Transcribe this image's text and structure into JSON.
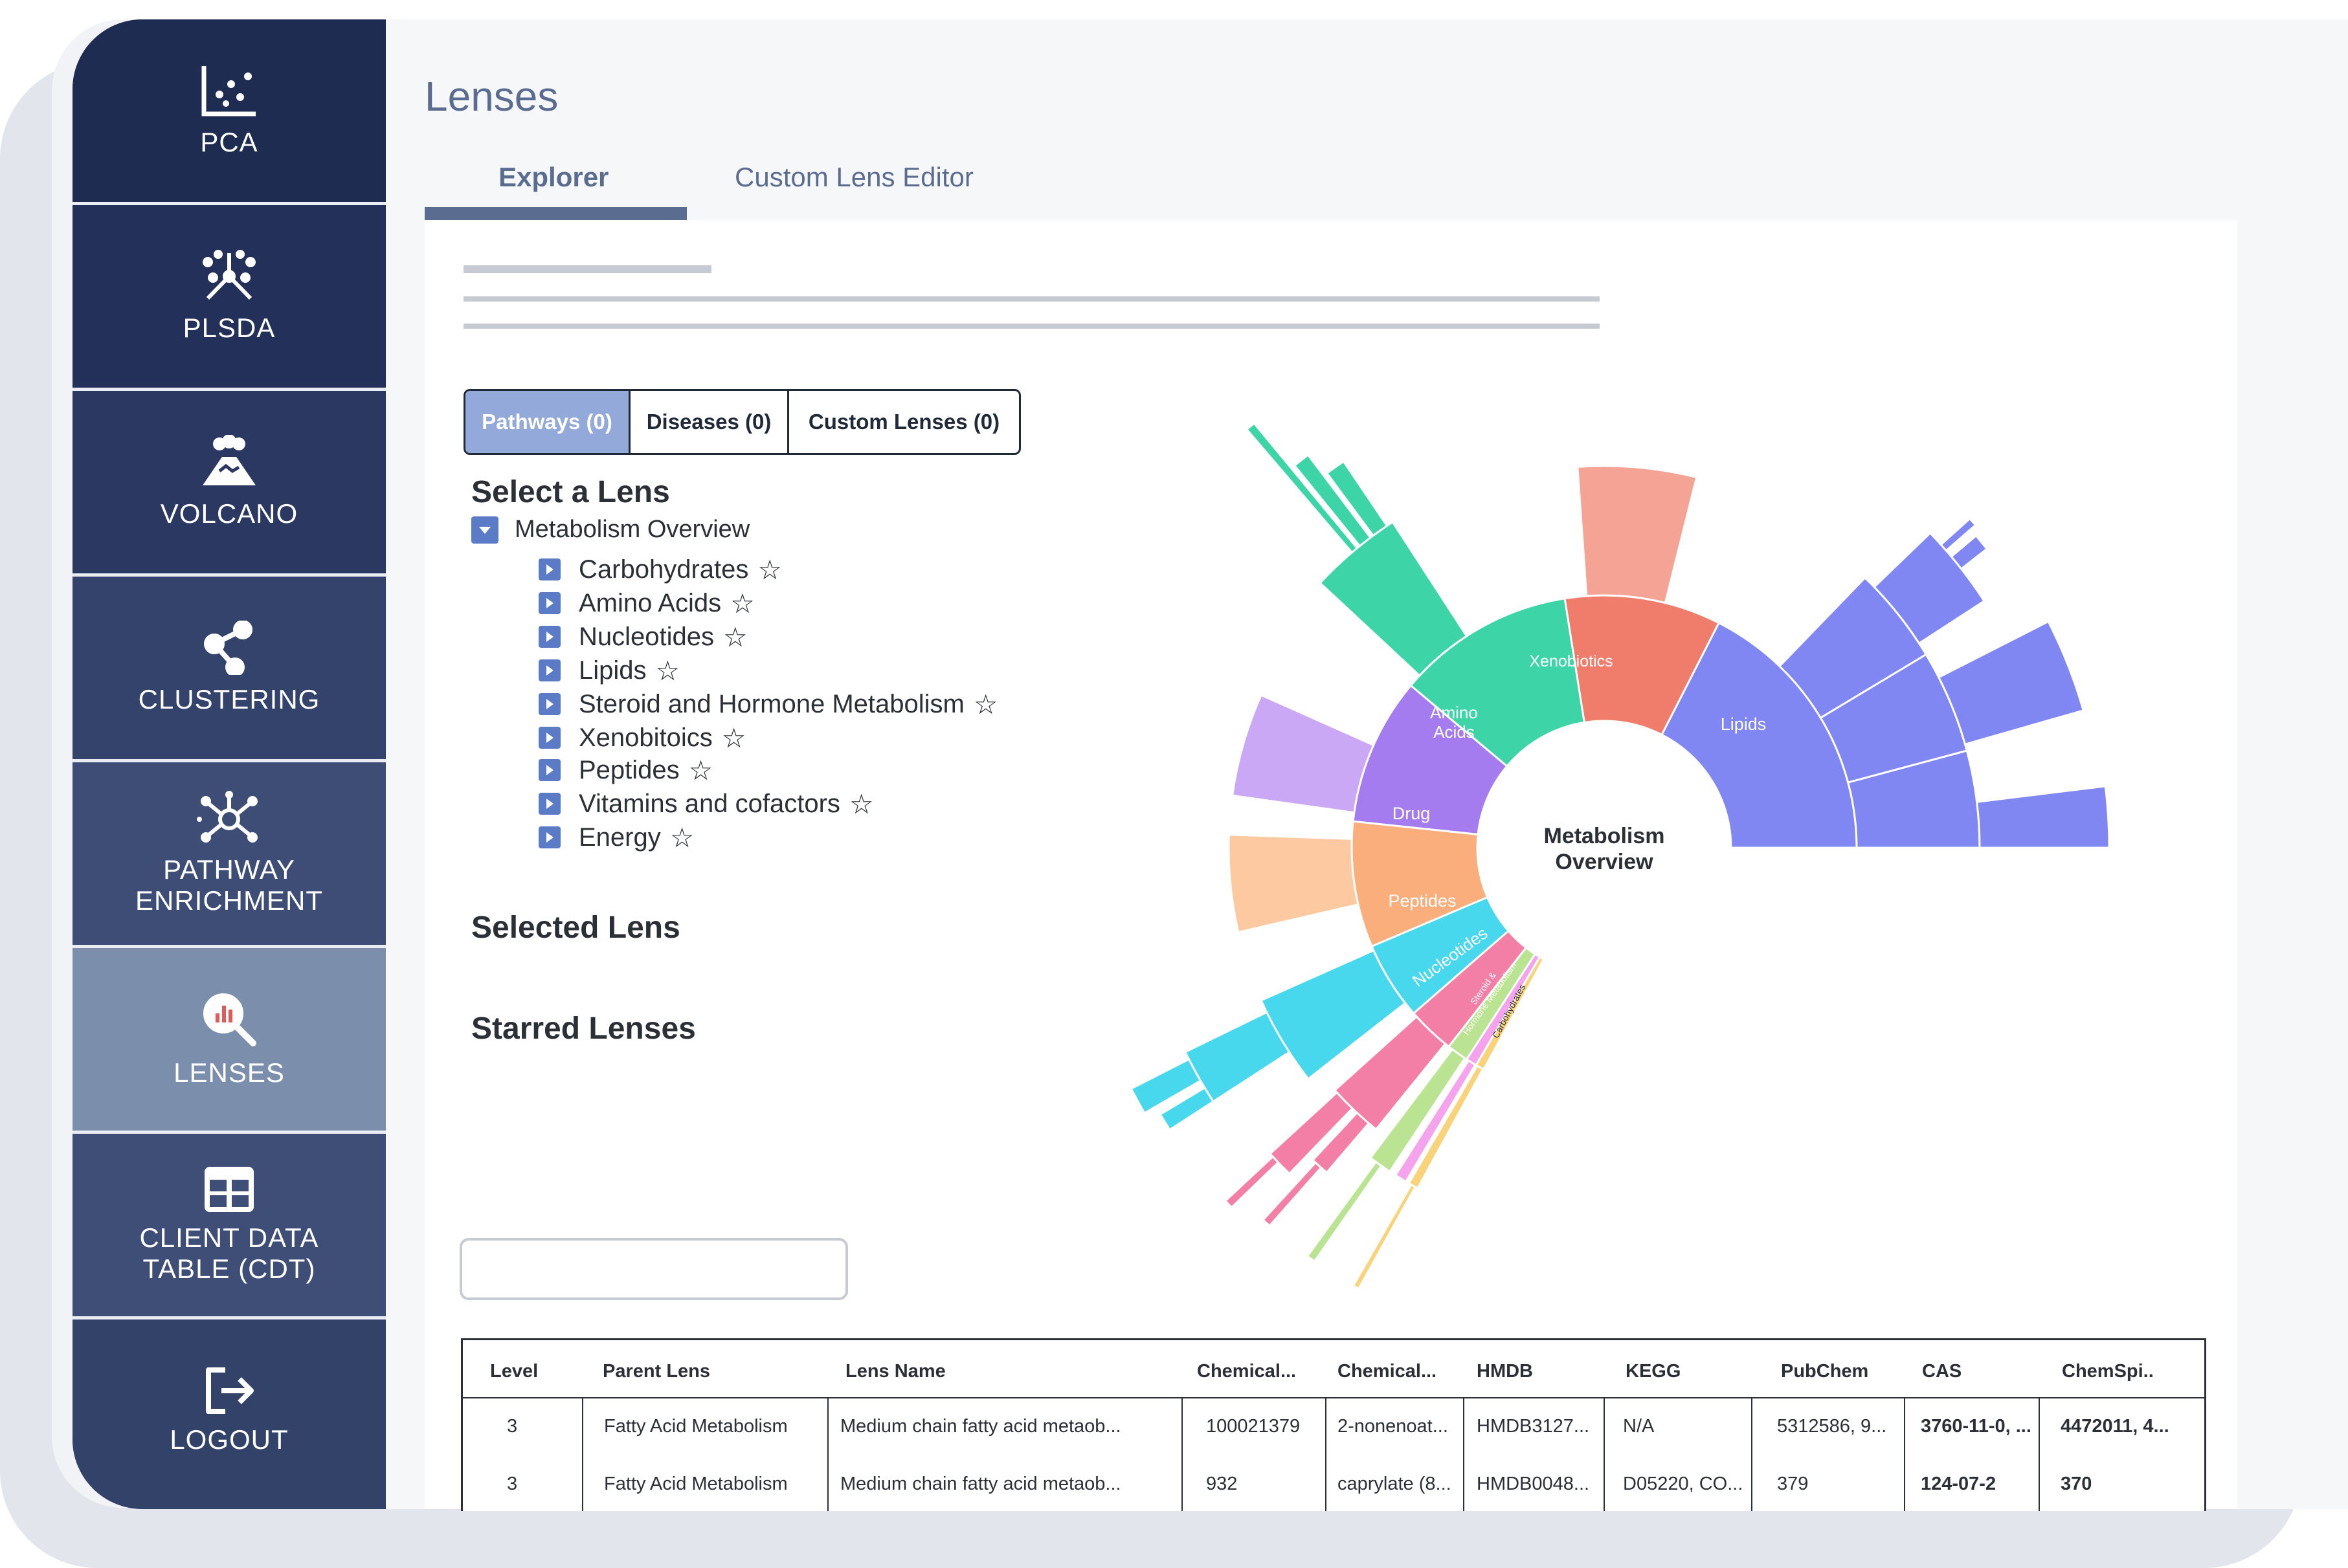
{
  "sidebar": {
    "items": [
      {
        "label": "PCA",
        "icon": "scatter-plot-icon"
      },
      {
        "label": "PLSDA",
        "icon": "network-burst-icon"
      },
      {
        "label": "VOLCANO",
        "icon": "volcano-icon"
      },
      {
        "label": "CLUSTERING",
        "icon": "cluster-nodes-icon"
      },
      {
        "label": "PATHWAY\nENRICHMENT",
        "icon": "pathway-network-icon"
      },
      {
        "label": "LENSES",
        "icon": "lens-search-icon",
        "active": true
      },
      {
        "label": "CLIENT DATA\nTABLE (CDT)",
        "icon": "table-icon"
      },
      {
        "label": "LOGOUT",
        "icon": "logout-icon"
      }
    ]
  },
  "page": {
    "title": "Lenses"
  },
  "tabs": {
    "explorer": "Explorer",
    "custom": "Custom Lens Editor"
  },
  "filters": {
    "pathways": "Pathways (0)",
    "diseases": "Diseases (0)",
    "custom": "Custom Lenses (0)"
  },
  "lens_tree": {
    "heading": "Select a Lens",
    "root": "Metabolism Overview",
    "items": [
      "Carbohydrates",
      "Amino Acids",
      "Nucleotides",
      "Lipids",
      "Steroid and Hormone Metabolism",
      "Xenobitoics",
      "Peptides",
      "Vitamins and cofactors",
      "Energy"
    ],
    "star": "☆"
  },
  "selected_heading": "Selected Lens",
  "starred_heading": "Starred Lenses",
  "sunburst": {
    "center": [
      "Metabolism",
      "Overview"
    ],
    "segments": {
      "amino": [
        "Amino",
        "Acids"
      ],
      "xeno": "Xenobiotics",
      "lipids": "Lipids",
      "drug": "Drug",
      "peptides": "Peptides",
      "nucleotides": "Nucleotides",
      "steroid": [
        "Steroid &",
        "Hormone Metabolism"
      ],
      "carbs": "Carbohydrates"
    },
    "colors": {
      "amino": "#3dd5a8",
      "xeno": "#f07d6b",
      "xeno_outer": "#f4a395",
      "lipids": "#8086f2",
      "drug": "#a57cf0",
      "drug_outer": "#caa8f5",
      "peptides": "#f9ae7b",
      "peptides_outer": "#fcc9a0",
      "nucleotides": "#47d8ee",
      "steroid": "#f47fa6",
      "carbs": "#bbe492",
      "vitamins": "#f6a3ee",
      "energy": "#f9d37a"
    }
  },
  "table": {
    "headers": [
      "Level",
      "Parent Lens",
      "Lens Name",
      "Chemical...",
      "Chemical...",
      "HMDB",
      "KEGG",
      "PubChem",
      "CAS",
      "ChemSpi.."
    ],
    "rows": [
      [
        "3",
        "Fatty Acid Metabolism",
        "Medium chain fatty acid metaob...",
        "100021379",
        "2-nonenoat...",
        "HMDB3127...",
        "N/A",
        "5312586, 9...",
        "3760-11-0, ...",
        "4472011, 4..."
      ],
      [
        "3",
        "Fatty Acid Metabolism",
        "Medium chain fatty acid metaob...",
        "932",
        "caprylate (8...",
        "HMDB0048...",
        "D05220, CO...",
        "379",
        "124-07-2",
        "370"
      ]
    ]
  }
}
